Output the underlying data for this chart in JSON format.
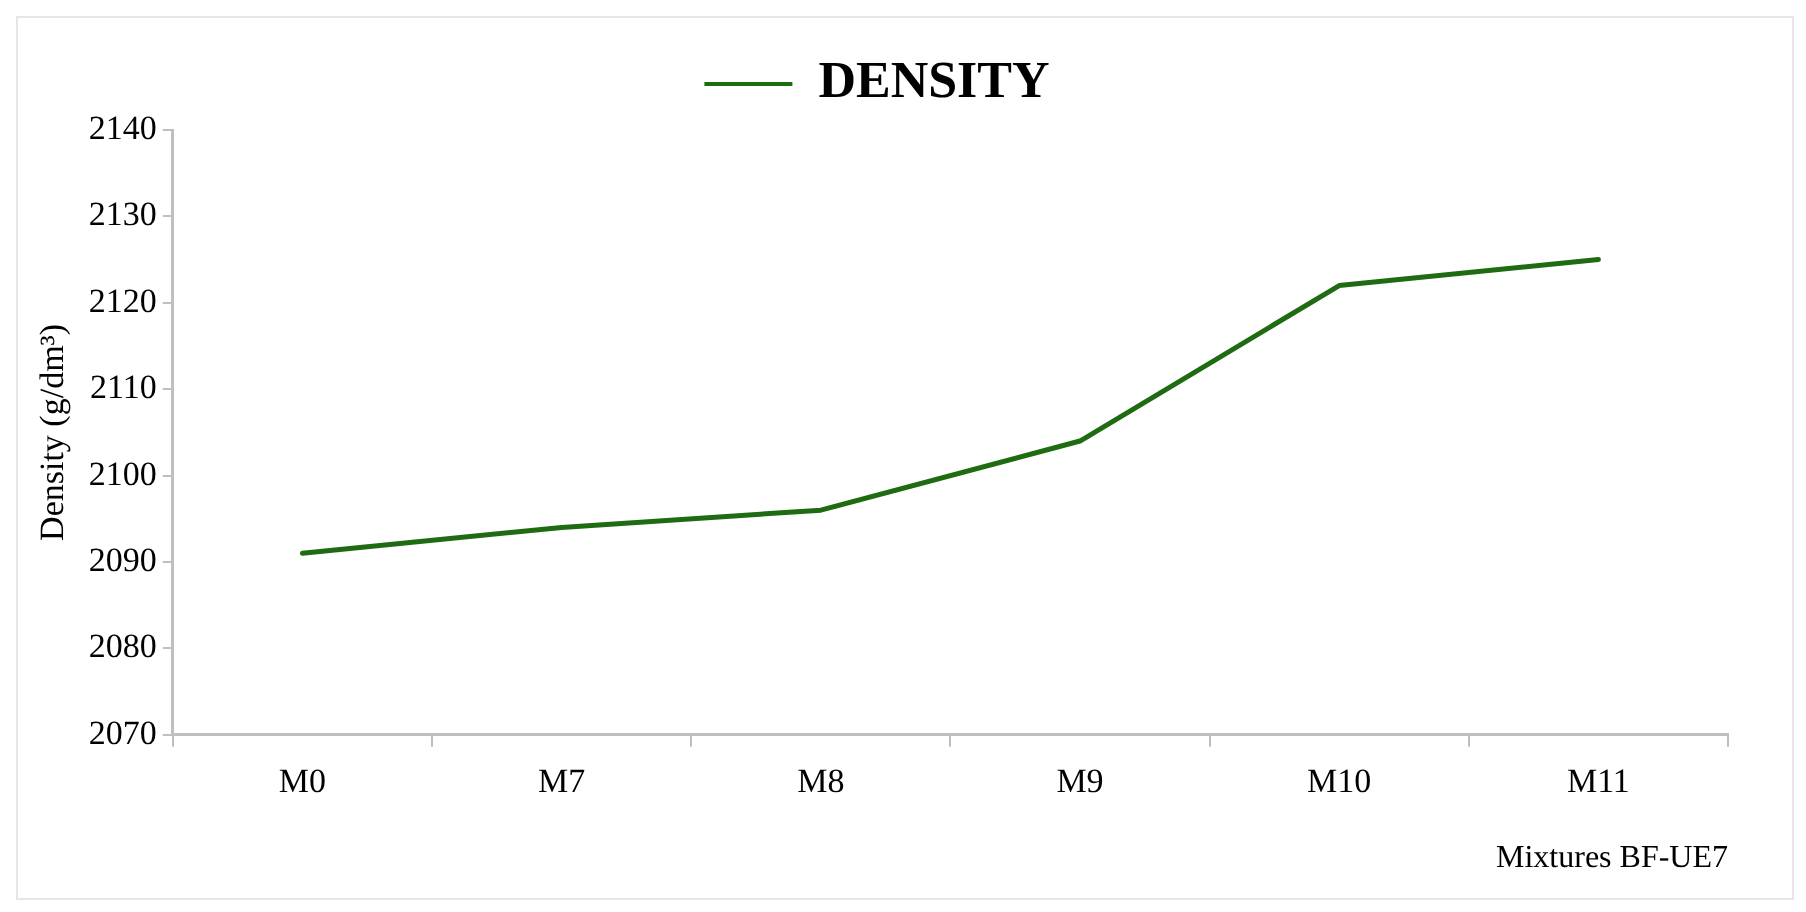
{
  "chart_data": {
    "type": "line",
    "xlabel": "Mixtures BF-UE7",
    "ylabel": "Density (g/dm³)",
    "categories": [
      "M0",
      "M7",
      "M8",
      "M9",
      "M10",
      "M11"
    ],
    "series": [
      {
        "name": "DENSITY",
        "color": "#1e6b12",
        "values": [
          2091,
          2094,
          2096,
          2104,
          2122,
          2125
        ]
      }
    ],
    "ylim": [
      2070,
      2140
    ],
    "yticks": [
      2070,
      2080,
      2090,
      2100,
      2110,
      2120,
      2130,
      2140
    ],
    "grid": false,
    "legend": "top",
    "marker": "none",
    "line_style": "solid"
  }
}
